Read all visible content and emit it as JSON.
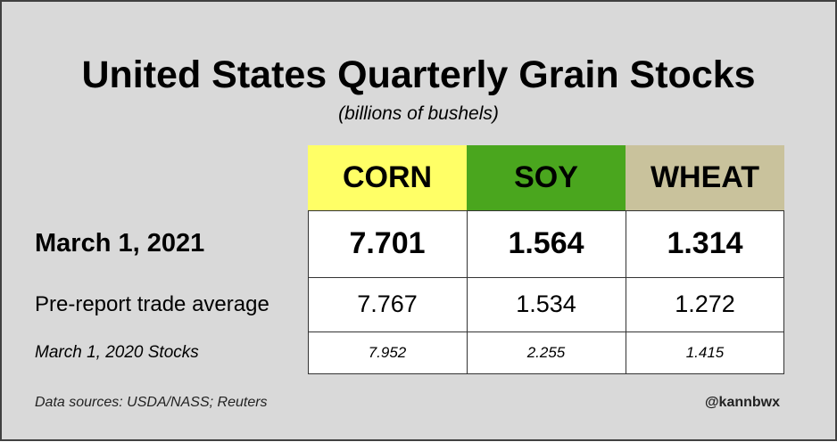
{
  "title": "United States Quarterly Grain Stocks",
  "subtitle": "(billions of bushels)",
  "chart_data": {
    "type": "table",
    "columns": [
      {
        "label": "CORN",
        "color": "#ffff66"
      },
      {
        "label": "SOY",
        "color": "#4aa61e"
      },
      {
        "label": "WHEAT",
        "color": "#c9c29c"
      }
    ],
    "rows": [
      {
        "label": "March 1, 2021",
        "values": [
          "7.701",
          "1.564",
          "1.314"
        ],
        "style": "bold"
      },
      {
        "label": "Pre-report trade average",
        "values": [
          "7.767",
          "1.534",
          "1.272"
        ],
        "style": "normal"
      },
      {
        "label": "March 1, 2020 Stocks",
        "values": [
          "7.952",
          "2.255",
          "1.415"
        ],
        "style": "italic"
      }
    ]
  },
  "footer": {
    "source": "Data sources: USDA/NASS; Reuters",
    "handle": "@kannbwx"
  }
}
